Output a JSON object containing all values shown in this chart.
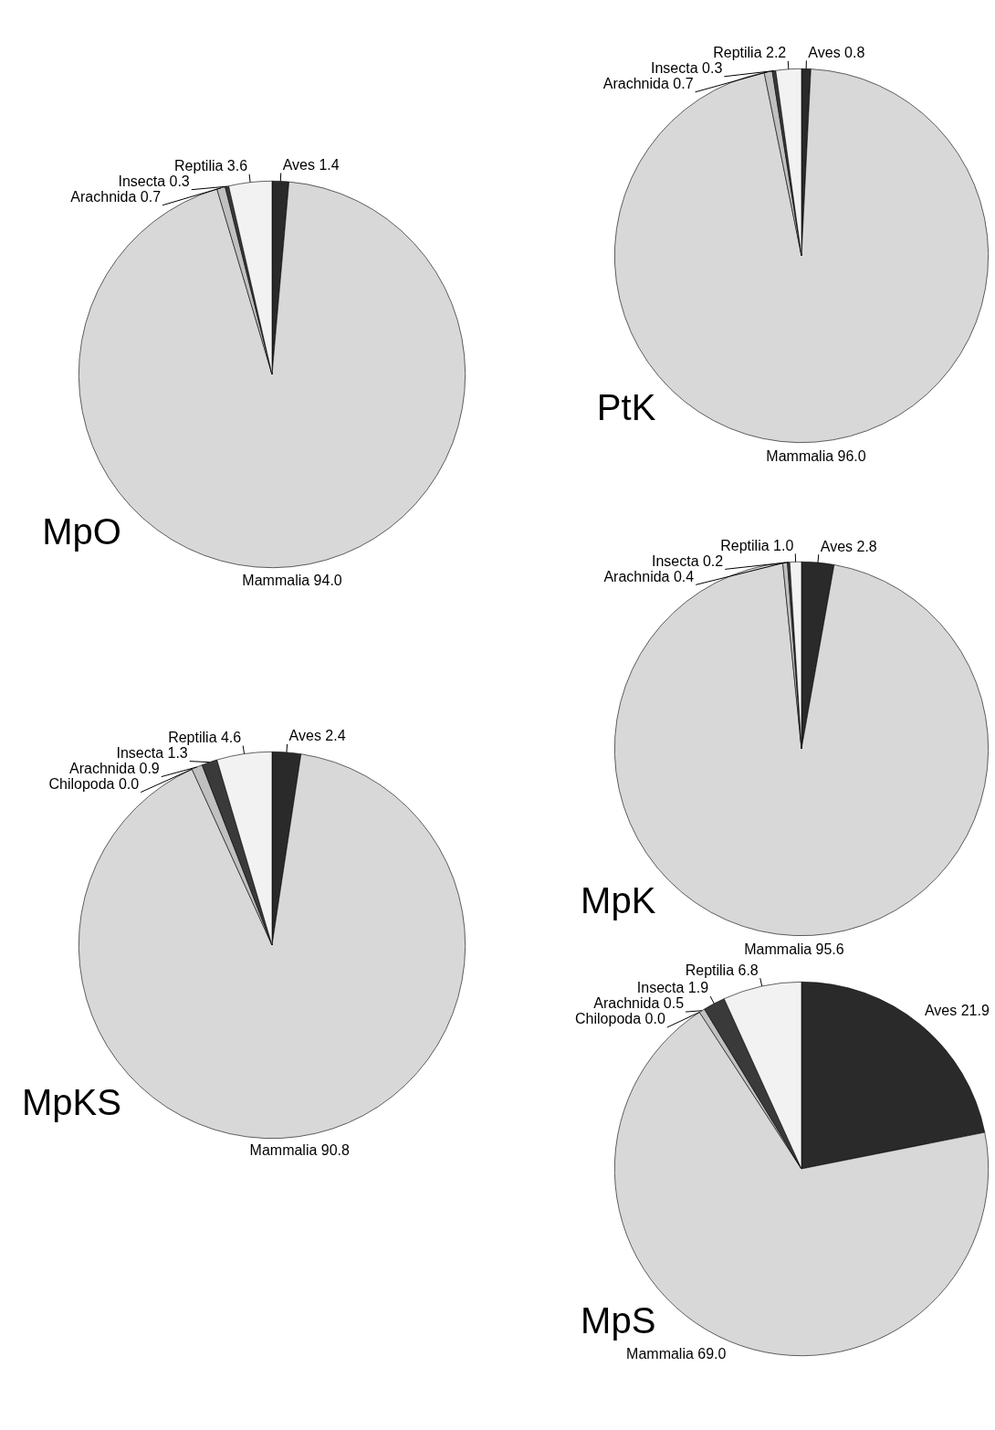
{
  "chart_data": [
    {
      "type": "pie",
      "title": "MpO",
      "categories": [
        "Aves",
        "Mammalia",
        "Arachnida",
        "Insecta",
        "Reptilia"
      ],
      "values": [
        1.4,
        94.0,
        0.7,
        0.3,
        3.6
      ],
      "value_labels": [
        "1.4",
        "94.0",
        "0.7",
        "0.3",
        "3.6"
      ],
      "colors": [
        "#2a2a2a",
        "#d8d8d8",
        "#c0c0c0",
        "#3a3a3a",
        "#f2f2f2"
      ]
    },
    {
      "type": "pie",
      "title": "PtK",
      "categories": [
        "Aves",
        "Mammalia",
        "Arachnida",
        "Insecta",
        "Reptilia"
      ],
      "values": [
        0.8,
        96.0,
        0.7,
        0.3,
        2.2
      ],
      "value_labels": [
        "0.8",
        "96.0",
        "0.7",
        "0.3",
        "2.2"
      ],
      "colors": [
        "#2a2a2a",
        "#d8d8d8",
        "#c0c0c0",
        "#3a3a3a",
        "#f2f2f2"
      ]
    },
    {
      "type": "pie",
      "title": "MpKS",
      "categories": [
        "Aves",
        "Mammalia",
        "Chilopoda",
        "Arachnida",
        "Insecta",
        "Reptilia"
      ],
      "values": [
        2.4,
        90.8,
        0.0,
        0.9,
        1.3,
        4.6
      ],
      "value_labels": [
        "2.4",
        "90.8",
        "0.0",
        "0.9",
        "1.3",
        "4.6"
      ],
      "colors": [
        "#2a2a2a",
        "#d8d8d8",
        "#ffffff",
        "#c0c0c0",
        "#3a3a3a",
        "#f2f2f2"
      ]
    },
    {
      "type": "pie",
      "title": "MpK",
      "categories": [
        "Aves",
        "Mammalia",
        "Arachnida",
        "Insecta",
        "Reptilia"
      ],
      "values": [
        2.8,
        95.6,
        0.4,
        0.2,
        1.0
      ],
      "value_labels": [
        "2.8",
        "95.6",
        "0.4",
        "0.2",
        "1.0"
      ],
      "colors": [
        "#2a2a2a",
        "#d8d8d8",
        "#c0c0c0",
        "#3a3a3a",
        "#f2f2f2"
      ]
    },
    {
      "type": "pie",
      "title": "MpS",
      "categories": [
        "Aves",
        "Mammalia",
        "Chilopoda",
        "Arachnida",
        "Insecta",
        "Reptilia"
      ],
      "values": [
        21.9,
        69.0,
        0.0,
        0.5,
        1.9,
        6.8
      ],
      "value_labels": [
        "21.9",
        "69.0",
        "0.0",
        "0.5",
        "1.9",
        "6.8"
      ],
      "colors": [
        "#2a2a2a",
        "#d8d8d8",
        "#ffffff",
        "#c0c0c0",
        "#3a3a3a",
        "#f2f2f2"
      ]
    }
  ]
}
